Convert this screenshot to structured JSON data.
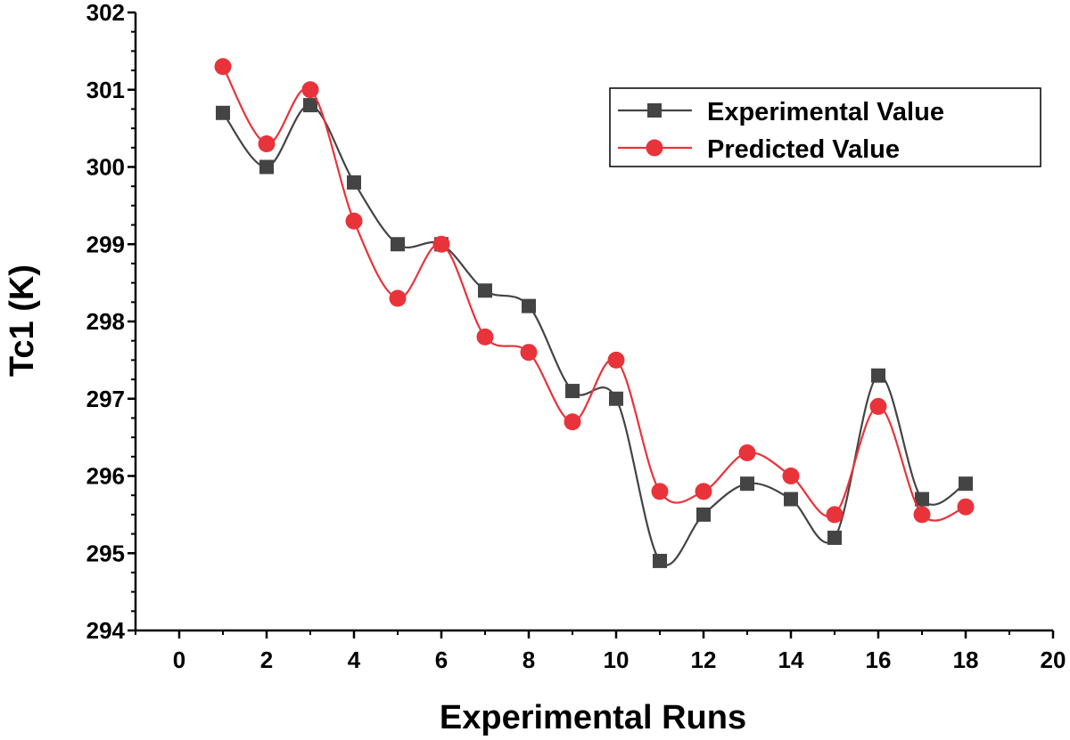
{
  "chart_data": {
    "type": "line",
    "title": "",
    "xlabel": "Experimental Runs",
    "ylabel": "Tc1 (K)",
    "xlim": [
      -1,
      20
    ],
    "ylim": [
      294,
      302
    ],
    "x_ticks": [
      "0",
      "2",
      "4",
      "6",
      "8",
      "10",
      "12",
      "14",
      "16",
      "18",
      "20"
    ],
    "y_ticks": [
      "294",
      "295",
      "296",
      "297",
      "298",
      "299",
      "300",
      "301",
      "302"
    ],
    "grid": false,
    "legend_position": "top-right",
    "x": [
      1,
      2,
      3,
      4,
      5,
      6,
      7,
      8,
      9,
      10,
      11,
      12,
      13,
      14,
      15,
      16,
      17,
      18
    ],
    "series": [
      {
        "name": "Experimental Value",
        "color": "#444444",
        "marker": "square",
        "values": [
          300.7,
          300.0,
          300.8,
          299.8,
          299.0,
          299.0,
          298.4,
          298.2,
          297.1,
          297.0,
          294.9,
          295.5,
          295.9,
          295.7,
          295.2,
          297.3,
          295.7,
          295.9
        ]
      },
      {
        "name": "Predicted Value",
        "color": "#e8333a",
        "marker": "circle",
        "values": [
          301.3,
          300.3,
          301.0,
          299.3,
          298.3,
          299.0,
          297.8,
          297.6,
          296.7,
          297.5,
          295.8,
          295.8,
          296.3,
          296.0,
          295.5,
          296.9,
          295.5,
          295.6
        ]
      }
    ]
  }
}
